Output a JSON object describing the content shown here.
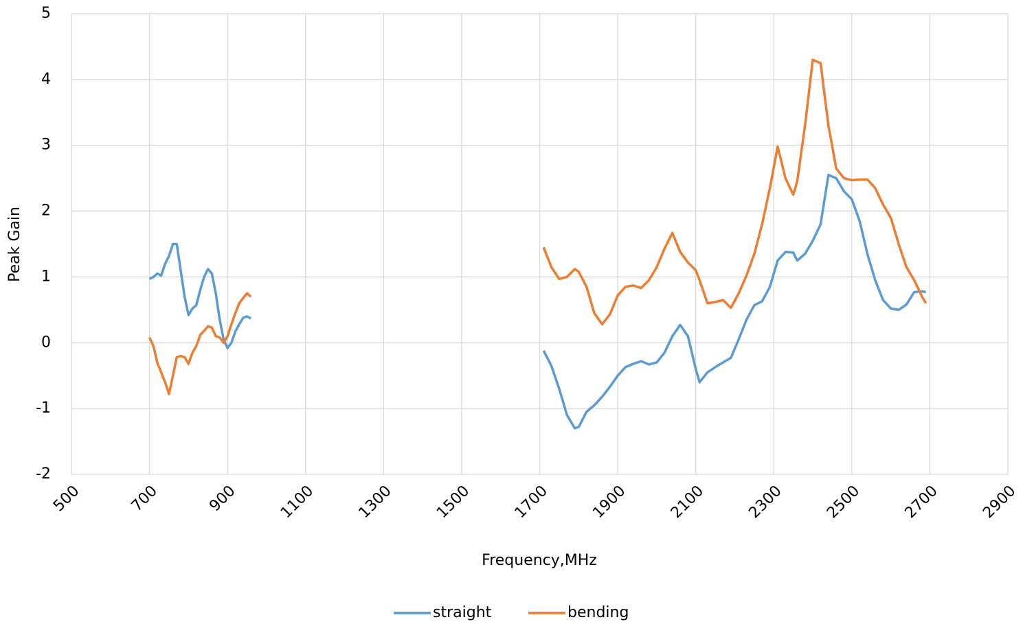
{
  "chart_data": {
    "type": "line",
    "xlabel": "Frequency,MHz",
    "ylabel": "Peak Gain",
    "x": [
      700,
      710,
      720,
      730,
      740,
      750,
      760,
      770,
      780,
      790,
      800,
      810,
      820,
      830,
      840,
      850,
      860,
      870,
      880,
      890,
      900,
      910,
      920,
      930,
      940,
      950,
      960,
      null,
      1710,
      1730,
      1750,
      1770,
      1790,
      1800,
      1820,
      1840,
      1860,
      1880,
      1900,
      1920,
      1940,
      1960,
      1980,
      2000,
      2020,
      2040,
      2060,
      2080,
      2100,
      2110,
      2130,
      2150,
      2170,
      2190,
      2210,
      2230,
      2250,
      2270,
      2290,
      2310,
      2330,
      2350,
      2360,
      2380,
      2400,
      2420,
      2440,
      2460,
      2480,
      2500,
      2520,
      2540,
      2560,
      2580,
      2600,
      2620,
      2640,
      2660,
      2680,
      2690
    ],
    "series": [
      {
        "name": "straight",
        "color": "#5b9bd5",
        "values": [
          0.97,
          1.0,
          1.05,
          1.02,
          1.2,
          1.32,
          1.5,
          1.5,
          1.1,
          0.7,
          0.42,
          0.52,
          0.57,
          0.8,
          1.0,
          1.12,
          1.05,
          0.75,
          0.35,
          0.05,
          -0.08,
          0.0,
          0.17,
          0.28,
          0.38,
          0.4,
          0.37,
          null,
          -0.12,
          -0.35,
          -0.7,
          -1.1,
          -1.3,
          -1.28,
          -1.05,
          -0.95,
          -0.82,
          -0.67,
          -0.5,
          -0.37,
          -0.32,
          -0.28,
          -0.33,
          -0.3,
          -0.15,
          0.1,
          0.27,
          0.1,
          -0.4,
          -0.6,
          -0.45,
          -0.37,
          -0.3,
          -0.23,
          0.05,
          0.35,
          0.57,
          0.63,
          0.85,
          1.25,
          1.38,
          1.37,
          1.25,
          1.35,
          1.55,
          1.8,
          2.55,
          2.5,
          2.3,
          2.18,
          1.85,
          1.35,
          0.95,
          0.65,
          0.52,
          0.5,
          0.58,
          0.77,
          0.78,
          0.77
        ]
      },
      {
        "name": "bending",
        "color": "#ed7d31",
        "values": [
          0.08,
          -0.05,
          -0.3,
          -0.45,
          -0.6,
          -0.78,
          -0.5,
          -0.22,
          -0.2,
          -0.22,
          -0.32,
          -0.15,
          -0.05,
          0.12,
          0.18,
          0.25,
          0.23,
          0.1,
          0.08,
          0.0,
          0.1,
          0.28,
          0.45,
          0.6,
          0.68,
          0.75,
          0.7,
          null,
          1.45,
          1.15,
          0.97,
          1.0,
          1.12,
          1.08,
          0.85,
          0.45,
          0.28,
          0.43,
          0.72,
          0.85,
          0.87,
          0.83,
          0.95,
          1.15,
          1.43,
          1.67,
          1.38,
          1.22,
          1.1,
          0.95,
          0.6,
          0.62,
          0.65,
          0.53,
          0.75,
          1.02,
          1.35,
          1.8,
          2.35,
          2.98,
          2.5,
          2.25,
          2.45,
          3.3,
          4.3,
          4.25,
          3.3,
          2.65,
          2.5,
          2.47,
          2.48,
          2.48,
          2.35,
          2.1,
          1.9,
          1.5,
          1.15,
          0.95,
          0.7,
          0.6
        ]
      }
    ],
    "xlim": [
      500,
      2900
    ],
    "xticks": [
      500,
      700,
      900,
      1100,
      1300,
      1500,
      1700,
      1900,
      2100,
      2300,
      2500,
      2700,
      2900
    ],
    "ylim": [
      -2,
      5
    ],
    "yticks": [
      -2,
      -1,
      0,
      1,
      2,
      3,
      4,
      5
    ],
    "grid": true,
    "legend": "bottom"
  }
}
